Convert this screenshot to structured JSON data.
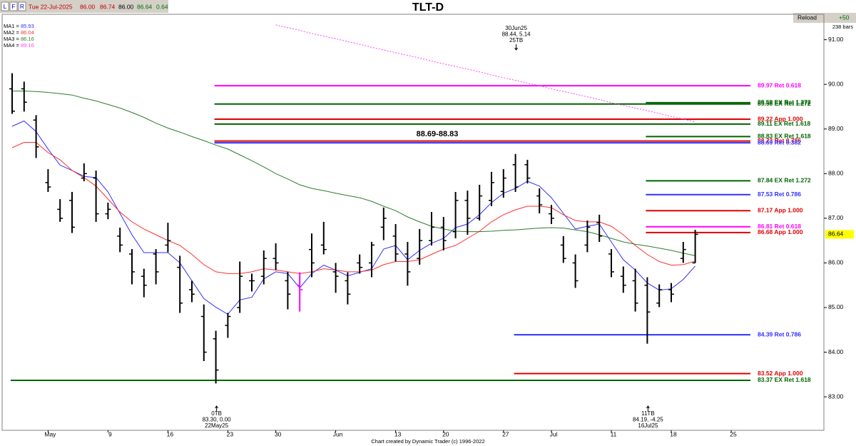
{
  "chart_data": {
    "type": "ohlc",
    "title": "TLT-D",
    "toolbar": {
      "buttons": [
        "L",
        "F",
        "R"
      ],
      "reload": "Reload",
      "bars_added": "+50",
      "bar_count": "238 bars"
    },
    "quote": {
      "date": "Tue 22-Jul-2025",
      "open": "86.00",
      "high": "86.74",
      "low": "86.00",
      "close": "86.64",
      "change": "0.64"
    },
    "footer": "Chart created by Dynamic Trader  (c) 1996-2022",
    "categories": [
      null,
      null,
      null,
      "May",
      null,
      null,
      null,
      null,
      "9",
      null,
      null,
      null,
      null,
      "16",
      null,
      null,
      null,
      null,
      "23",
      null,
      null,
      null,
      "30",
      null,
      null,
      null,
      null,
      "Jun",
      null,
      null,
      null,
      null,
      "13",
      null,
      null,
      null,
      "20",
      null,
      null,
      null,
      null,
      "27",
      null,
      null,
      null,
      "Jul",
      null,
      null,
      null,
      null,
      "11",
      null,
      null,
      null,
      null,
      "18",
      null,
      null,
      null,
      null,
      "25",
      null,
      null,
      null,
      null,
      null,
      null,
      null
    ],
    "open": [
      89.9,
      89.9,
      89.2,
      87.8,
      87.2,
      87.4,
      87.9,
      87.9,
      87.1,
      86.6,
      86.2,
      85.7,
      86.2,
      86.4,
      85.9,
      85.4,
      84.8,
      84.3,
      84.6,
      85.0,
      85.6,
      85.7,
      86.1,
      85.6,
      85.5,
      86.3,
      86.4,
      85.8,
      85.6,
      86.0,
      86.0,
      86.8,
      86.6,
      86.2,
      86.1,
      86.5,
      86.8,
      86.7,
      87.4,
      87.0,
      87.4,
      87.6,
      88.2,
      88.2,
      87.5,
      87.1,
      86.4,
      86.0,
      86.4,
      86.9,
      86.2,
      85.7,
      85.6,
      85.5,
      85.1,
      85.4,
      86.1,
      86.0,
      null,
      null,
      null,
      null,
      null,
      null,
      null,
      null,
      null,
      null
    ],
    "high": [
      90.25,
      90.06,
      89.31,
      88.1,
      87.43,
      87.59,
      88.23,
      88.07,
      87.35,
      86.79,
      86.31,
      85.87,
      86.31,
      86.9,
      86.16,
      85.6,
      85.07,
      84.48,
      84.88,
      86.03,
      85.76,
      86.28,
      86.44,
      85.8,
      85.79,
      86.66,
      86.92,
      86.0,
      85.79,
      86.19,
      86.47,
      87.24,
      86.87,
      86.47,
      86.76,
      87.14,
      87.03,
      87.59,
      87.62,
      87.75,
      88.04,
      88.1,
      88.44,
      88.31,
      87.67,
      87.3,
      86.6,
      86.19,
      86.95,
      87.08,
      86.31,
      85.92,
      85.87,
      85.68,
      85.52,
      85.55,
      86.47,
      86.74,
      null,
      null,
      null,
      null,
      null,
      null,
      null,
      null,
      null,
      null
    ],
    "low": [
      89.34,
      89.39,
      88.35,
      87.59,
      86.92,
      86.67,
      87.83,
      86.92,
      86.98,
      86.24,
      85.52,
      85.23,
      85.52,
      86.24,
      84.88,
      85.12,
      83.8,
      83.3,
      84.32,
      84.88,
      85.36,
      85.52,
      85.84,
      84.96,
      84.91,
      85.68,
      86.19,
      85.33,
      85.07,
      85.76,
      85.68,
      86.51,
      86.03,
      85.49,
      85.96,
      86.39,
      86.28,
      86.55,
      86.63,
      86.95,
      87.27,
      87.46,
      87.59,
      87.78,
      87.11,
      86.87,
      86.0,
      85.44,
      86.24,
      86.47,
      85.68,
      85.33,
      84.91,
      84.19,
      85.01,
      85.12,
      86.0,
      86.0,
      null,
      null,
      null,
      null,
      null,
      null,
      null,
      null,
      null,
      null
    ],
    "close": [
      89.4,
      89.6,
      88.6,
      87.7,
      87.0,
      86.8,
      88.0,
      87.1,
      87.2,
      86.4,
      85.8,
      85.5,
      85.8,
      86.5,
      85.1,
      85.3,
      84.0,
      83.6,
      84.8,
      85.7,
      85.6,
      86.1,
      86.0,
      85.3,
      85.4,
      86.0,
      86.3,
      85.7,
      85.3,
      85.9,
      86.4,
      87.0,
      86.2,
      85.8,
      86.5,
      86.8,
      86.5,
      87.4,
      87.0,
      87.5,
      87.8,
      87.9,
      87.7,
      87.9,
      87.3,
      87.0,
      86.1,
      85.6,
      86.8,
      86.6,
      85.8,
      85.5,
      85.1,
      84.9,
      85.4,
      85.3,
      86.3,
      86.64,
      null,
      null,
      null,
      null,
      null,
      null,
      null,
      null,
      null,
      null
    ],
    "bar_color": "#000000",
    "highlight_bars": [
      24
    ],
    "highlight_color": "#ff00ff",
    "series": [
      {
        "name": "MA1 =",
        "color": "#3030ff",
        "values": [
          89.06,
          89.18,
          88.94,
          88.55,
          88.19,
          88.07,
          87.94,
          87.91,
          87.59,
          87.11,
          86.63,
          86.23,
          86.23,
          86.23,
          86.0,
          85.6,
          85.2,
          85.01,
          84.85,
          85.17,
          85.23,
          85.64,
          85.8,
          85.76,
          85.44,
          85.76,
          85.95,
          85.84,
          85.71,
          85.79,
          85.87,
          86.31,
          86.39,
          86.07,
          86.28,
          86.44,
          86.55,
          86.79,
          86.87,
          87.08,
          87.35,
          87.56,
          87.67,
          87.83,
          87.72,
          87.46,
          87.11,
          86.76,
          86.82,
          86.87,
          86.47,
          86.07,
          85.84,
          85.55,
          85.39,
          85.42,
          85.63,
          85.93,
          null,
          null,
          null,
          null,
          null,
          null,
          null,
          null,
          null,
          null
        ]
      },
      {
        "name": "MA2 =",
        "color": "#ff3030",
        "values": [
          88.58,
          88.7,
          88.7,
          88.47,
          88.31,
          88.07,
          87.91,
          87.72,
          87.43,
          87.14,
          86.92,
          86.76,
          86.63,
          86.5,
          86.39,
          86.19,
          85.96,
          85.8,
          85.76,
          85.76,
          85.8,
          85.87,
          85.84,
          85.8,
          85.76,
          85.8,
          85.87,
          85.84,
          85.8,
          85.8,
          85.84,
          85.96,
          86.03,
          86.03,
          86.07,
          86.19,
          86.31,
          86.39,
          86.55,
          86.71,
          86.92,
          87.08,
          87.19,
          87.27,
          87.27,
          87.24,
          87.08,
          86.95,
          86.92,
          86.92,
          86.82,
          86.63,
          86.39,
          86.19,
          86.03,
          85.95,
          85.96,
          86.04,
          null,
          null,
          null,
          null,
          null,
          null,
          null,
          null,
          null,
          null
        ]
      },
      {
        "name": "MA3 =",
        "color": "#2e7d2e",
        "values": [
          89.85,
          89.85,
          89.84,
          89.82,
          89.79,
          89.76,
          89.69,
          89.63,
          89.55,
          89.47,
          89.37,
          89.26,
          89.13,
          89.02,
          88.93,
          88.83,
          88.74,
          88.64,
          88.55,
          88.42,
          88.29,
          88.15,
          88.0,
          87.88,
          87.75,
          87.67,
          87.62,
          87.56,
          87.51,
          87.46,
          87.38,
          87.27,
          87.17,
          87.03,
          86.92,
          86.82,
          86.76,
          86.71,
          86.7,
          86.7,
          86.71,
          86.73,
          86.74,
          86.76,
          86.78,
          86.79,
          86.78,
          86.74,
          86.7,
          86.63,
          86.55,
          86.47,
          86.42,
          86.38,
          86.33,
          86.28,
          86.22,
          86.16,
          null,
          null,
          null,
          null,
          null,
          null,
          null,
          null,
          null,
          null
        ]
      },
      {
        "name": "MA4 =",
        "color": "#ff40ff",
        "dashed": true,
        "values": [
          null,
          null,
          null,
          null,
          null,
          null,
          null,
          null,
          null,
          null,
          null,
          null,
          null,
          null,
          null,
          null,
          null,
          null,
          null,
          null,
          null,
          null,
          91.33,
          91.27,
          91.21,
          91.14,
          91.08,
          91.02,
          90.96,
          90.9,
          90.83,
          90.77,
          90.71,
          90.65,
          90.59,
          90.52,
          90.46,
          90.4,
          90.34,
          90.28,
          90.21,
          90.15,
          90.09,
          90.03,
          89.97,
          89.9,
          89.84,
          89.78,
          89.72,
          89.66,
          89.59,
          89.53,
          89.47,
          89.41,
          89.35,
          89.28,
          89.22,
          89.16,
          null,
          null,
          null,
          null,
          null,
          null,
          null,
          null,
          null,
          null
        ]
      }
    ],
    "ylim": [
      82.25,
      91.57
    ],
    "yticks": [
      {
        "value": 83,
        "label": "83.00"
      },
      {
        "value": 84,
        "label": "84.00"
      },
      {
        "value": 85,
        "label": "85.00"
      },
      {
        "value": 86,
        "label": "86.00"
      },
      {
        "value": 87,
        "label": "87.00"
      },
      {
        "value": 88,
        "label": "88.00"
      },
      {
        "value": 89,
        "label": "89.00"
      },
      {
        "value": 90,
        "label": "90.00"
      },
      {
        "value": 91,
        "label": "91.00"
      }
    ],
    "last_price_color": "#ffff00",
    "levels": [
      {
        "value": 89.97,
        "label": "89.97 Ret 0.618",
        "color": "#ff00ff",
        "start": 17
      },
      {
        "value": 89.59,
        "label": "89.59 EX Ret 1.272",
        "color": "#006400",
        "start": 53
      },
      {
        "value": 89.56,
        "label": "89.56 EX Ret 1.272",
        "color": "#006400",
        "start": 17
      },
      {
        "value": 89.22,
        "label": "89.22 App 1.000",
        "color": "#e00000",
        "start": 17
      },
      {
        "value": 89.11,
        "label": "89.11 EX Ret 1.618",
        "color": "#006400",
        "start": 17
      },
      {
        "value": 88.83,
        "label": "88.83 EX Ret 1.618",
        "color": "#006400",
        "start": 53
      },
      {
        "value": 88.73,
        "label": "88.73 Ret 0.786",
        "color": "#e00000",
        "start": 17
      },
      {
        "value": 88.69,
        "label": "88.69 Ret 0.382",
        "color": "#3030ff",
        "start": 17
      },
      {
        "value": 87.84,
        "label": "87.84 EX Ret 1.272",
        "color": "#006400",
        "start": 53
      },
      {
        "value": 87.53,
        "label": "87.53 Ret 0.786",
        "color": "#3030ff",
        "start": 53
      },
      {
        "value": 87.17,
        "label": "87.17 App 1.000",
        "color": "#e00000",
        "start": 53
      },
      {
        "value": 86.81,
        "label": "86.81 Ret 0.618",
        "color": "#ff00ff",
        "start": 53
      },
      {
        "value": 86.68,
        "label": "86.68 App 1.000",
        "color": "#e00000",
        "start": 53
      },
      {
        "value": 84.39,
        "label": "84.39 Ret 0.786",
        "color": "#3030ff",
        "start": 42
      },
      {
        "value": 83.52,
        "label": "83.52 App 1.000",
        "color": "#e00000",
        "start": 42
      },
      {
        "value": 83.37,
        "label": "83.37 EX Ret 1.618",
        "color": "#006400",
        "start": 0
      }
    ],
    "zone_label": "88.69-88.83",
    "annotations": [
      {
        "bar": 42,
        "side": "top",
        "lines": [
          "30Jun25",
          "88.44, 5.14",
          "25TB"
        ]
      },
      {
        "bar": 17,
        "side": "bottom",
        "lines": [
          "0TB",
          "83.30, 0.00",
          "22May25"
        ]
      },
      {
        "bar": 53,
        "side": "bottom",
        "lines": [
          "11TB",
          "84.19, -4.25",
          "16Jul25"
        ]
      }
    ]
  }
}
